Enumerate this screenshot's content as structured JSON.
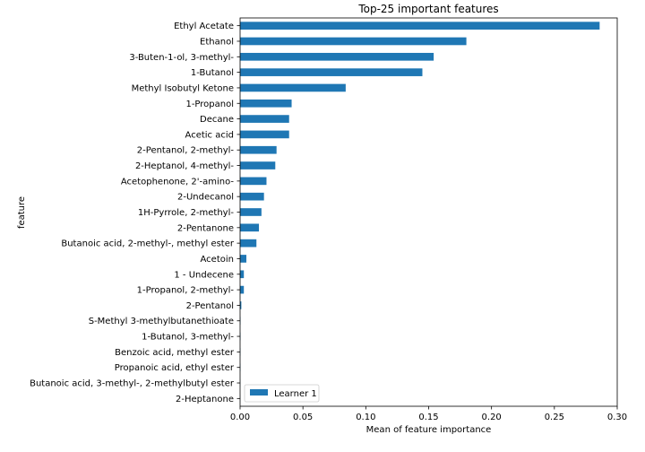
{
  "chart_data": {
    "type": "bar",
    "orientation": "horizontal",
    "title": "Top-25 important features",
    "xlabel": "Mean of feature importance",
    "ylabel": "feature",
    "xlim": [
      0,
      0.3
    ],
    "xticks": [
      0.0,
      0.05,
      0.1,
      0.15,
      0.2,
      0.25,
      0.3
    ],
    "xtick_labels": [
      "0.00",
      "0.05",
      "0.10",
      "0.15",
      "0.20",
      "0.25",
      "0.30"
    ],
    "grid": false,
    "legend_position": "bottom-left",
    "bar_color": "#1f77b4",
    "categories": [
      "Ethyl Acetate",
      "Ethanol",
      "3-Buten-1-ol, 3-methyl-",
      "1-Butanol",
      "Methyl Isobutyl Ketone",
      "1-Propanol",
      "Decane",
      "Acetic acid",
      "2-Pentanol, 2-methyl-",
      "2-Heptanol, 4-methyl-",
      "Acetophenone, 2'-amino-",
      "2-Undecanol",
      "1H-Pyrrole, 2-methyl-",
      "2-Pentanone",
      "Butanoic acid, 2-methyl-, methyl ester",
      "Acetoin",
      "1 - Undecene",
      "1-Propanol, 2-methyl-",
      "2-Pentanol",
      "S-Methyl 3-methylbutanethioate",
      "1-Butanol, 3-methyl-",
      "Benzoic acid, methyl ester",
      "Propanoic acid, ethyl ester",
      "Butanoic acid, 3-methyl-, 2-methylbutyl ester",
      "2-Heptanone"
    ],
    "series": [
      {
        "name": "Learner 1",
        "values": [
          0.286,
          0.18,
          0.154,
          0.145,
          0.084,
          0.041,
          0.039,
          0.039,
          0.029,
          0.028,
          0.021,
          0.019,
          0.017,
          0.015,
          0.013,
          0.005,
          0.003,
          0.003,
          0.001,
          0.0003,
          0.0003,
          0.0002,
          0.0002,
          0.0001,
          0.0001
        ]
      }
    ]
  }
}
